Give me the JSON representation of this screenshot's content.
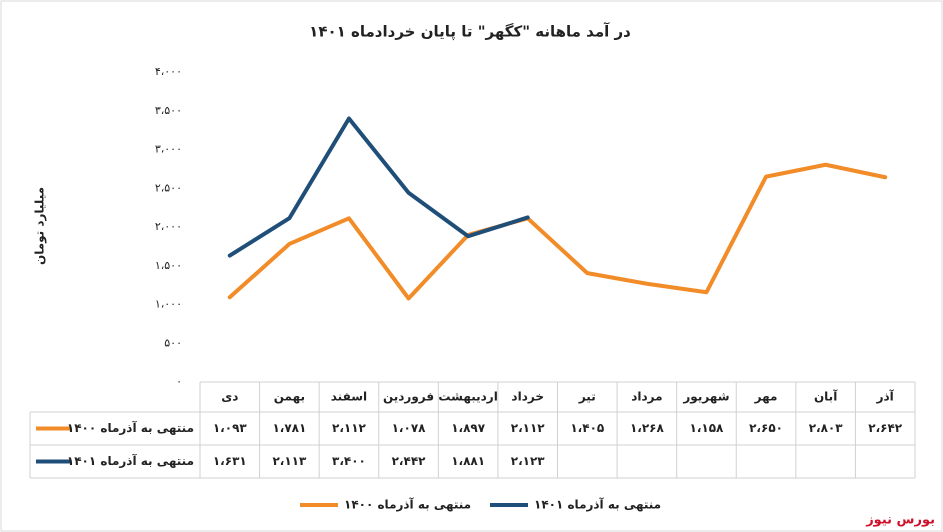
{
  "chart_data": {
    "type": "line",
    "title": "در آمد ماهانه \"کگهر\" تا پایان خردادماه ۱۴۰۱",
    "y_label": "میلیارد تومان",
    "source": "بورس نیوز",
    "categories": [
      "دی",
      "بهمن",
      "اسفند",
      "فروردین",
      "اردیبهشت",
      "خرداد",
      "تیر",
      "مرداد",
      "شهریور",
      "مهر",
      "آبان",
      "آذر"
    ],
    "series": [
      {
        "name": "منتهی به آذرماه ۱۴۰۰",
        "color": "#f28c28",
        "values": [
          1093,
          1781,
          2112,
          1078,
          1897,
          2112,
          1405,
          1268,
          1158,
          2650,
          2803,
          2642
        ],
        "value_labels": [
          "۱،۰۹۳",
          "۱،۷۸۱",
          "۲،۱۱۲",
          "۱،۰۷۸",
          "۱،۸۹۷",
          "۲،۱۱۲",
          "۱،۴۰۵",
          "۱،۲۶۸",
          "۱،۱۵۸",
          "۲،۶۵۰",
          "۲،۸۰۳",
          "۲،۶۴۲"
        ]
      },
      {
        "name": "منتهی به آذرماه ۱۴۰۱",
        "color": "#1f4e79",
        "values": [
          1631,
          2113,
          3400,
          2442,
          1881,
          2123,
          null,
          null,
          null,
          null,
          null,
          null
        ],
        "value_labels": [
          "۱،۶۳۱",
          "۲،۱۱۳",
          "۳،۴۰۰",
          "۲،۴۴۲",
          "۱،۸۸۱",
          "۲،۱۲۳",
          null,
          null,
          null,
          null,
          null,
          null
        ]
      }
    ],
    "ylim": [
      0,
      4000
    ],
    "yticks": [
      {
        "value": 0,
        "label": "۰"
      },
      {
        "value": 500,
        "label": "۵۰۰"
      },
      {
        "value": 1000,
        "label": "۱،۰۰۰"
      },
      {
        "value": 1500,
        "label": "۱،۵۰۰"
      },
      {
        "value": 2000,
        "label": "۲،۰۰۰"
      },
      {
        "value": 2500,
        "label": "۲،۵۰۰"
      },
      {
        "value": 3000,
        "label": "۳،۰۰۰"
      },
      {
        "value": 3500,
        "label": "۳،۵۰۰"
      },
      {
        "value": 4000,
        "label": "۴،۰۰۰"
      }
    ],
    "grid": false,
    "legend": "bottom"
  }
}
